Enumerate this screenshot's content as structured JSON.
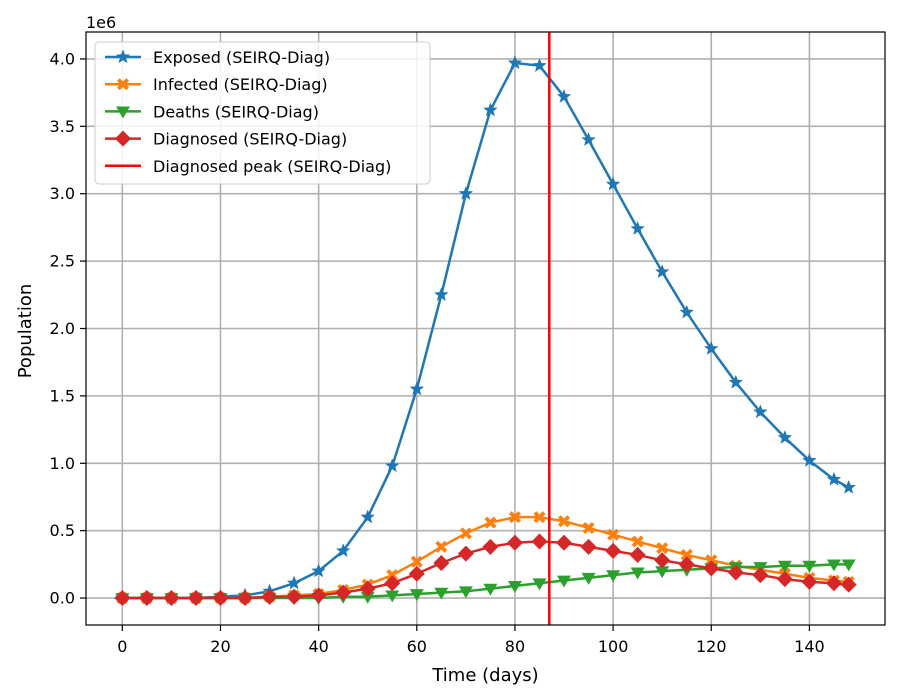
{
  "chart_data": {
    "type": "line",
    "xlabel": "Time (days)",
    "ylabel": "Population",
    "y_scale_label": "1e6",
    "xlim": [
      -7.4,
      155.4
    ],
    "ylim": [
      -0.2,
      4.2
    ],
    "x_ticks": [
      0,
      20,
      40,
      60,
      80,
      100,
      120,
      140
    ],
    "x_tick_labels": [
      "0",
      "20",
      "40",
      "60",
      "80",
      "100",
      "120",
      "140"
    ],
    "y_ticks": [
      0.0,
      0.5,
      1.0,
      1.5,
      2.0,
      2.5,
      3.0,
      3.5,
      4.0
    ],
    "y_tick_labels": [
      "0.0",
      "0.5",
      "1.0",
      "1.5",
      "2.0",
      "2.5",
      "3.0",
      "3.5",
      "4.0"
    ],
    "grid": true,
    "legend_position": "top-left",
    "x": [
      0,
      5,
      10,
      15,
      20,
      25,
      30,
      35,
      40,
      45,
      50,
      55,
      60,
      65,
      70,
      75,
      80,
      85,
      90,
      95,
      100,
      105,
      110,
      115,
      120,
      125,
      130,
      135,
      140,
      145,
      148
    ],
    "series": [
      {
        "name": "Exposed (SEIRQ-Diag)",
        "color": "#1f77b4",
        "marker": "star",
        "values": [
          0.0,
          0.0,
          0.0,
          0.0,
          0.01,
          0.02,
          0.05,
          0.11,
          0.2,
          0.35,
          0.6,
          0.98,
          1.55,
          2.25,
          3.0,
          3.62,
          3.97,
          3.95,
          3.72,
          3.4,
          3.07,
          2.74,
          2.42,
          2.12,
          1.85,
          1.6,
          1.38,
          1.19,
          1.02,
          0.88,
          0.82
        ]
      },
      {
        "name": "Infected (SEIRQ-Diag)",
        "color": "#ff7f0e",
        "marker": "x",
        "values": [
          0.0,
          0.0,
          0.0,
          0.0,
          0.0,
          0.0,
          0.01,
          0.02,
          0.03,
          0.06,
          0.1,
          0.17,
          0.27,
          0.38,
          0.48,
          0.56,
          0.6,
          0.6,
          0.57,
          0.52,
          0.47,
          0.42,
          0.37,
          0.32,
          0.28,
          0.24,
          0.21,
          0.18,
          0.15,
          0.13,
          0.12
        ]
      },
      {
        "name": "Deaths (SEIRQ-Diag)",
        "color": "#2ca02c",
        "marker": "triangle-down",
        "values": [
          0.0,
          0.0,
          0.0,
          0.0,
          0.0,
          0.0,
          0.0,
          0.0,
          0.0,
          0.01,
          0.01,
          0.02,
          0.03,
          0.04,
          0.05,
          0.07,
          0.09,
          0.11,
          0.13,
          0.15,
          0.17,
          0.19,
          0.2,
          0.21,
          0.22,
          0.23,
          0.23,
          0.24,
          0.24,
          0.25,
          0.25
        ]
      },
      {
        "name": "Diagnosed (SEIRQ-Diag)",
        "color": "#d62728",
        "marker": "diamond",
        "values": [
          0.0,
          0.0,
          0.0,
          0.0,
          0.0,
          0.0,
          0.01,
          0.01,
          0.02,
          0.04,
          0.07,
          0.11,
          0.18,
          0.26,
          0.33,
          0.38,
          0.41,
          0.42,
          0.41,
          0.38,
          0.35,
          0.32,
          0.28,
          0.25,
          0.22,
          0.19,
          0.17,
          0.14,
          0.12,
          0.11,
          0.1
        ]
      }
    ],
    "vertical_lines": [
      {
        "name": "Diagnosed peak (SEIRQ-Diag)",
        "color": "#ff0000",
        "x": 87
      }
    ]
  }
}
